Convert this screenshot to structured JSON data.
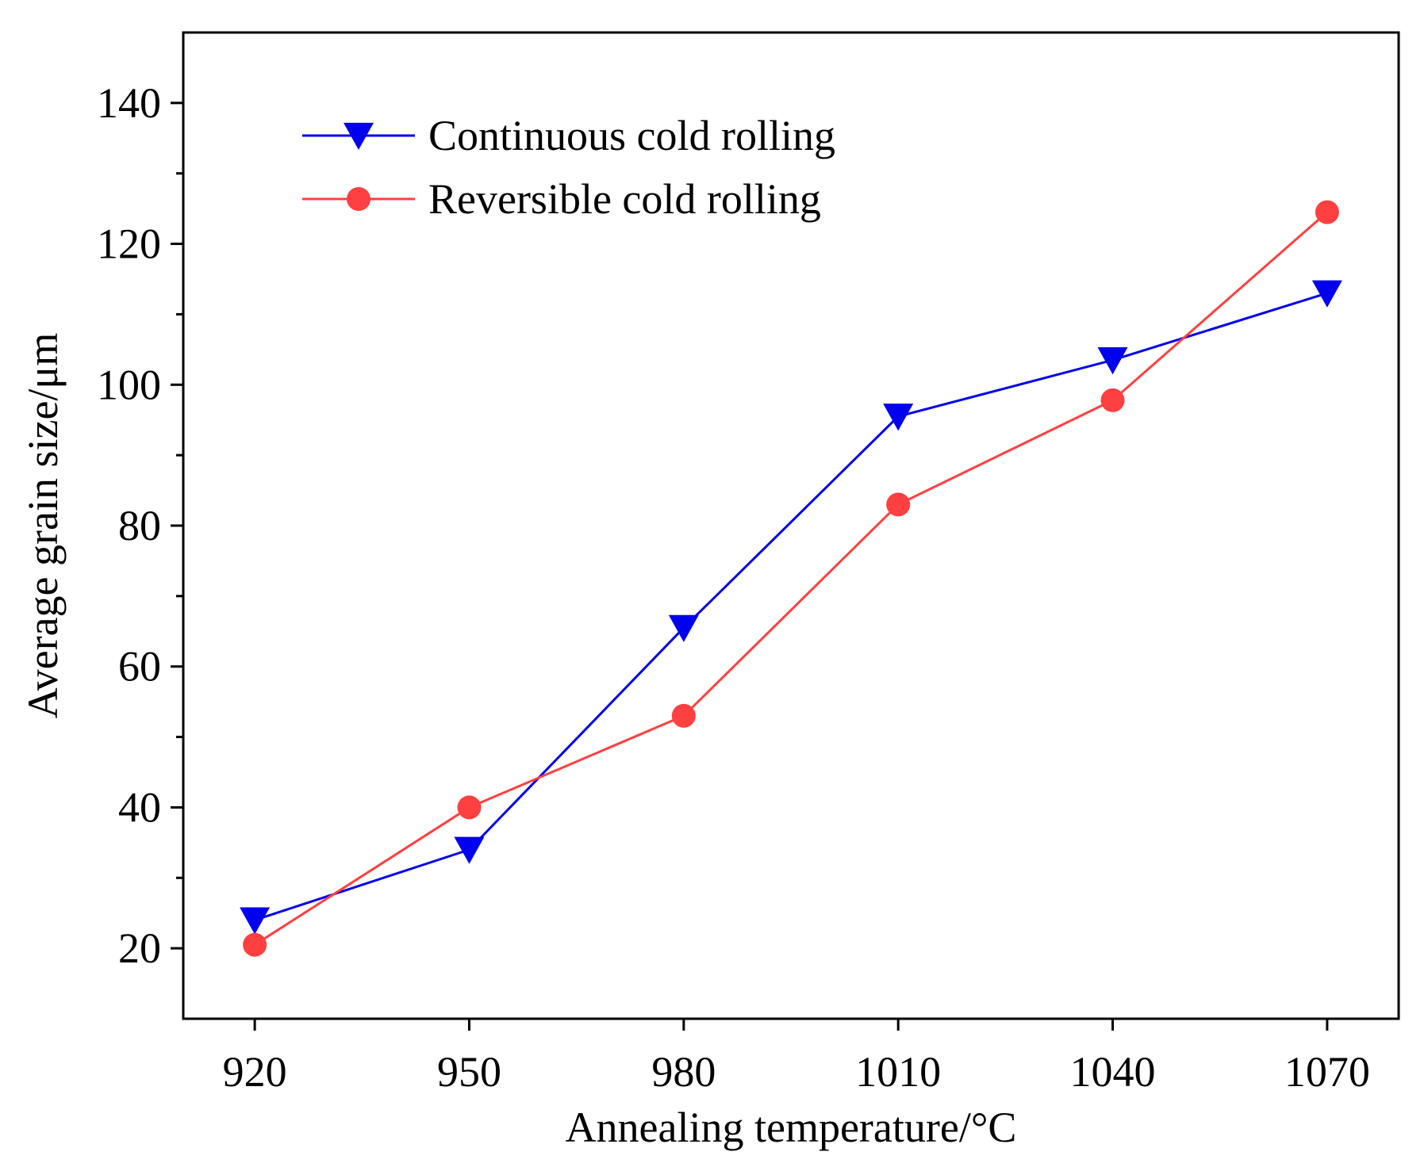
{
  "chart_data": {
    "type": "line",
    "xlabel": "Annealing temperature/°C",
    "ylabel": "Average grain size/μm",
    "categories": [
      "920",
      "950",
      "980",
      "1010",
      "1040",
      "1070"
    ],
    "x": [
      920,
      950,
      980,
      1010,
      1040,
      1070
    ],
    "xlim": [
      910,
      1080
    ],
    "ylim": [
      10,
      150
    ],
    "yticks": [
      20,
      40,
      60,
      80,
      100,
      120,
      140
    ],
    "yminor_step": 10,
    "grid": false,
    "legend_position": "top-left",
    "series": [
      {
        "name": "Continuous cold rolling",
        "values": [
          24,
          34,
          65.5,
          95.5,
          103.5,
          113
        ],
        "color": "#0000ee",
        "marker": "triangle-down"
      },
      {
        "name": "Reversible cold rolling",
        "values": [
          20.5,
          40,
          53,
          83,
          97.8,
          124.5
        ],
        "color": "#ff4040",
        "marker": "circle"
      }
    ]
  }
}
